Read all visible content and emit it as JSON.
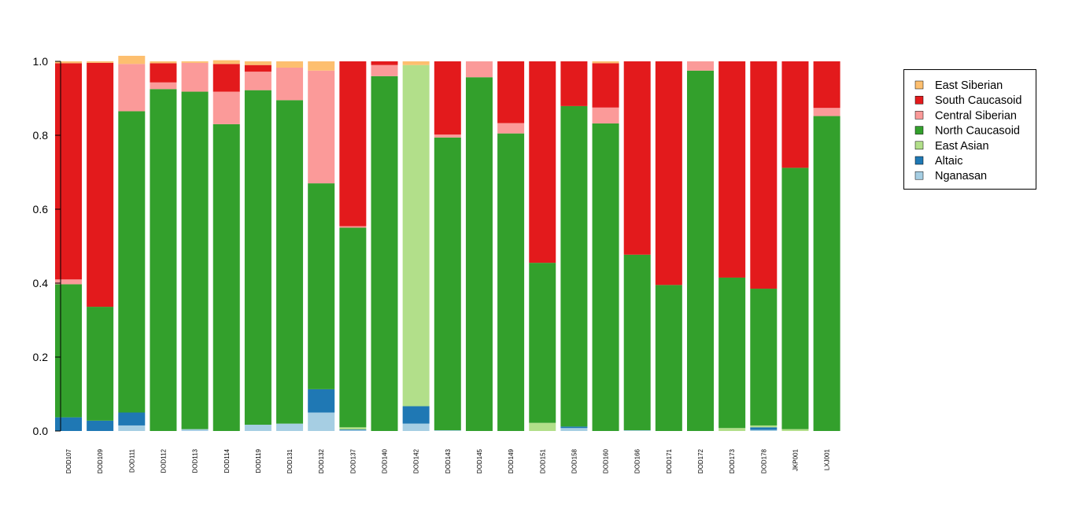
{
  "chart_data": {
    "type": "bar",
    "stacked": true,
    "title": "",
    "xlabel": "",
    "ylabel": "",
    "ylim": [
      0,
      1
    ],
    "yticks": [
      "0.0",
      "0.2",
      "0.4",
      "0.6",
      "0.8",
      "1.0"
    ],
    "grid": false,
    "legend_position": "top-right",
    "categories": [
      "DOD107",
      "DOD109",
      "DOD111",
      "DOD112",
      "DOD113",
      "DOD114",
      "DOD119",
      "DOD131",
      "DOD132",
      "DOD137",
      "DOD140",
      "DOD142",
      "DOD143",
      "DOD145",
      "DOD149",
      "DOD151",
      "DOD158",
      "DOD160",
      "DOD166",
      "DOD171",
      "DOD172",
      "DOD173",
      "DOD178",
      "JKP001",
      "LXJ001"
    ],
    "series": [
      {
        "name": "Nganasan",
        "color": "#a6cee3",
        "values": [
          0.0,
          0.0,
          0.015,
          0.0,
          0.005,
          0.0,
          0.017,
          0.02,
          0.05,
          0.002,
          0.0,
          0.02,
          0.002,
          0.0,
          0.0,
          0.0,
          0.008,
          0.0,
          0.002,
          0.0,
          0.0,
          0.0,
          0.003,
          0.0,
          0.0
        ]
      },
      {
        "name": "Altaic",
        "color": "#1f78b4",
        "values": [
          0.037,
          0.028,
          0.035,
          0.0,
          0.0,
          0.0,
          0.0,
          0.0,
          0.063,
          0.002,
          0.0,
          0.047,
          0.0,
          0.0,
          0.0,
          0.0,
          0.004,
          0.0,
          0.0,
          0.0,
          0.0,
          0.0,
          0.007,
          0.0,
          0.0
        ]
      },
      {
        "name": "East Asian",
        "color": "#b2df8a",
        "values": [
          0.0,
          0.0,
          0.0,
          0.0,
          0.0,
          0.0,
          0.0,
          0.0,
          0.0,
          0.006,
          0.0,
          0.923,
          0.0,
          0.0,
          0.0,
          0.022,
          0.0,
          0.0,
          0.0,
          0.0,
          0.0,
          0.008,
          0.005,
          0.005,
          0.0
        ]
      },
      {
        "name": "North Caucasoid",
        "color": "#33a02c",
        "values": [
          0.36,
          0.308,
          0.815,
          0.925,
          0.913,
          0.83,
          0.905,
          0.875,
          0.557,
          0.54,
          0.96,
          0.0,
          0.792,
          0.957,
          0.805,
          0.433,
          0.867,
          0.832,
          0.475,
          0.395,
          0.975,
          0.407,
          0.37,
          0.707,
          0.852
        ]
      },
      {
        "name": "Central Siberian",
        "color": "#fb9a99",
        "values": [
          0.013,
          0.0,
          0.128,
          0.018,
          0.078,
          0.088,
          0.05,
          0.088,
          0.305,
          0.004,
          0.03,
          0.0,
          0.008,
          0.043,
          0.028,
          0.0,
          0.0,
          0.043,
          0.0,
          0.0,
          0.025,
          0.0,
          0.0,
          0.0,
          0.022
        ]
      },
      {
        "name": "South Caucasoid",
        "color": "#e31a1c",
        "values": [
          0.585,
          0.66,
          0.0,
          0.052,
          0.0,
          0.075,
          0.018,
          0.0,
          0.0,
          0.446,
          0.01,
          0.0,
          0.198,
          0.0,
          0.167,
          0.545,
          0.121,
          0.12,
          0.523,
          0.605,
          0.0,
          0.585,
          0.615,
          0.288,
          0.126
        ]
      },
      {
        "name": "East Siberian",
        "color": "#fdbf6f",
        "values": [
          0.005,
          0.004,
          0.022,
          0.005,
          0.004,
          0.01,
          0.01,
          0.017,
          0.025,
          0.0,
          0.0,
          0.01,
          0.0,
          0.0,
          0.0,
          0.0,
          0.0,
          0.005,
          0.0,
          0.0,
          0.0,
          0.0,
          0.0,
          0.0,
          0.0
        ]
      }
    ],
    "legend_order": [
      "East Siberian",
      "South Caucasoid",
      "Central Siberian",
      "North Caucasoid",
      "East Asian",
      "Altaic",
      "Nganasan"
    ]
  }
}
